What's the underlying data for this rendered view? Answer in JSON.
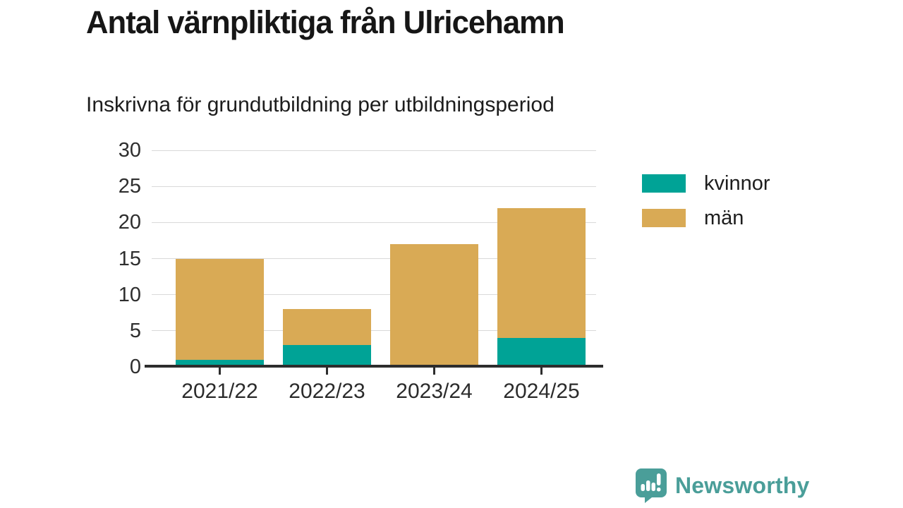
{
  "header": {
    "title": "Antal värnpliktiga från Ulricehamn",
    "subtitle": "Inskrivna för grundutbildning per utbildningsperiod"
  },
  "chart_data": {
    "type": "bar",
    "stacked": true,
    "title": "Antal värnpliktiga från Ulricehamn",
    "subtitle": "Inskrivna för grundutbildning per utbildningsperiod",
    "categories": [
      "2021/22",
      "2022/23",
      "2023/24",
      "2024/25"
    ],
    "series": [
      {
        "name": "kvinnor",
        "color": "#00a396",
        "values": [
          1,
          3,
          0,
          4
        ]
      },
      {
        "name": "män",
        "color": "#d9aa55",
        "values": [
          14,
          5,
          17,
          18
        ]
      }
    ],
    "totals": [
      15,
      8,
      17,
      22
    ],
    "xlabel": "",
    "ylabel": "",
    "ylim": [
      0,
      30
    ],
    "y_ticks": [
      0,
      5,
      10,
      15,
      20,
      25,
      30
    ],
    "grid": "horizontal",
    "legend_position": "right"
  },
  "legend": {
    "items": [
      {
        "label": "kvinnor",
        "color": "#00a396"
      },
      {
        "label": "män",
        "color": "#d9aa55"
      }
    ]
  },
  "colors": {
    "kvinnor": "#00a396",
    "man": "#d9aa55",
    "axis": "#2d2d2d",
    "gridline": "#d9d9d9",
    "text": "#1d1d1d",
    "brand_teal": "#4a9e99"
  },
  "branding": {
    "logo_text": "Newsworthy",
    "logo_icon": "bar-chart-speech-bubble-icon"
  }
}
